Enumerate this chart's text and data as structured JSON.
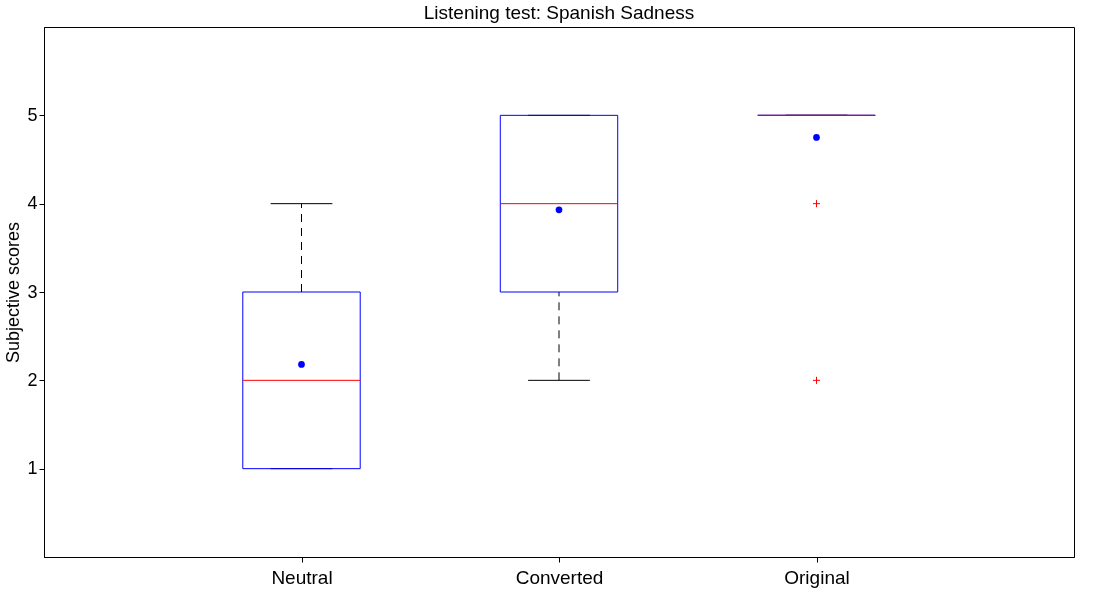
{
  "chart_data": {
    "type": "box",
    "title": "Listening test: Spanish Sadness",
    "ylabel": "Subjective scores",
    "categories": [
      "Neutral",
      "Converted",
      "Original"
    ],
    "ylim": [
      0,
      6
    ],
    "yticks": [
      1,
      2,
      3,
      4,
      5
    ],
    "grid": false,
    "series": [
      {
        "color": "#0000ff",
        "boxes": [
          {
            "low": 1,
            "q1": 1,
            "median": 2,
            "q3": 3,
            "high": 4,
            "mean": 2.18
          },
          {
            "low": 2,
            "q1": 3,
            "median": 4,
            "q3": 5,
            "high": 5,
            "mean": 3.93
          },
          {
            "low": 5,
            "q1": 5,
            "median": 5,
            "q3": 5,
            "high": 5,
            "mean": 4.75,
            "outliers": [
              4,
              2
            ]
          }
        ]
      }
    ]
  }
}
